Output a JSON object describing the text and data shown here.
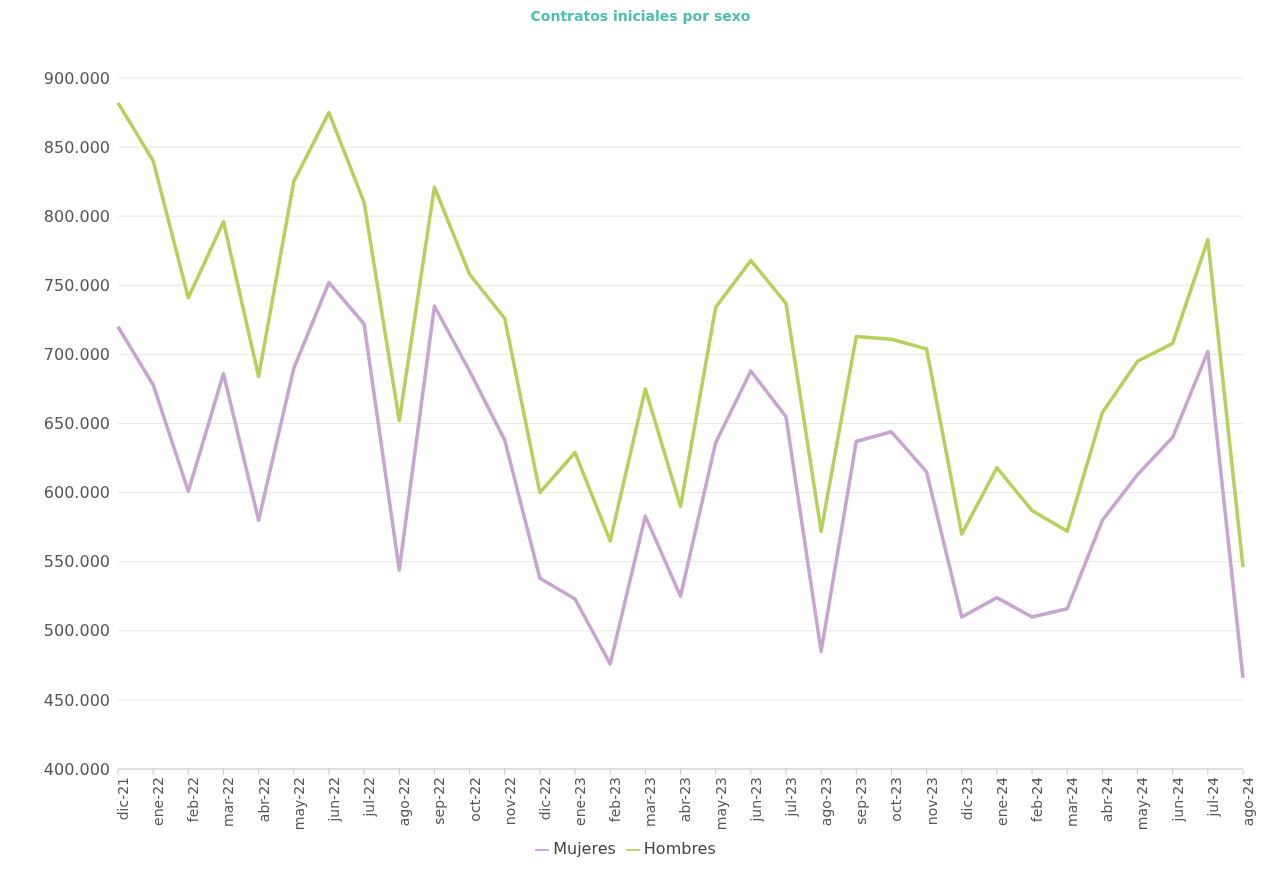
{
  "chart_data": {
    "type": "line",
    "title": "Contratos iniciales por sexo",
    "categories": [
      "dic-21",
      "ene-22",
      "feb-22",
      "mar-22",
      "abr-22",
      "may-22",
      "jun-22",
      "jul-22",
      "ago-22",
      "sep-22",
      "oct-22",
      "nov-22",
      "dic-22",
      "ene-23",
      "feb-23",
      "mar-23",
      "abr-23",
      "may-23",
      "jun-23",
      "jul-23",
      "ago-23",
      "sep-23",
      "oct-23",
      "nov-23",
      "dic-23",
      "ene-24",
      "feb-24",
      "mar-24",
      "abr-24",
      "may-24",
      "jun-24",
      "jul-24",
      "ago-24"
    ],
    "series": [
      {
        "name": "Mujeres",
        "color": "#c9a3d2",
        "values": [
          720000,
          678000,
          601000,
          686000,
          580000,
          690000,
          752000,
          722000,
          544000,
          735000,
          688000,
          638000,
          538000,
          523000,
          476000,
          583000,
          525000,
          636000,
          688000,
          655000,
          485000,
          637000,
          644000,
          615000,
          510000,
          524000,
          510000,
          516000,
          580000,
          613000,
          640000,
          702000,
          466000
        ]
      },
      {
        "name": "Hombres",
        "color": "#b5d15a",
        "values": [
          882000,
          840000,
          741000,
          796000,
          684000,
          825000,
          875000,
          810000,
          652000,
          821000,
          758000,
          726000,
          600000,
          629000,
          565000,
          675000,
          590000,
          734000,
          768000,
          737000,
          572000,
          713000,
          711000,
          704000,
          570000,
          618000,
          587000,
          572000,
          658000,
          695000,
          708000,
          783000,
          546000
        ]
      }
    ],
    "ylim": [
      400000,
      900000
    ],
    "yticks": [
      {
        "value": 400000,
        "label": "400.000"
      },
      {
        "value": 450000,
        "label": "450.000"
      },
      {
        "value": 500000,
        "label": "500.000"
      },
      {
        "value": 550000,
        "label": "550.000"
      },
      {
        "value": 600000,
        "label": "600.000"
      },
      {
        "value": 650000,
        "label": "650.000"
      },
      {
        "value": 700000,
        "label": "700.000"
      },
      {
        "value": 750000,
        "label": "750.000"
      },
      {
        "value": 800000,
        "label": "800.000"
      },
      {
        "value": 850000,
        "label": "850.000"
      },
      {
        "value": 900000,
        "label": "900.000"
      }
    ],
    "grid": "y",
    "legend": "bottom",
    "marker": "none",
    "line_style": "solid"
  }
}
